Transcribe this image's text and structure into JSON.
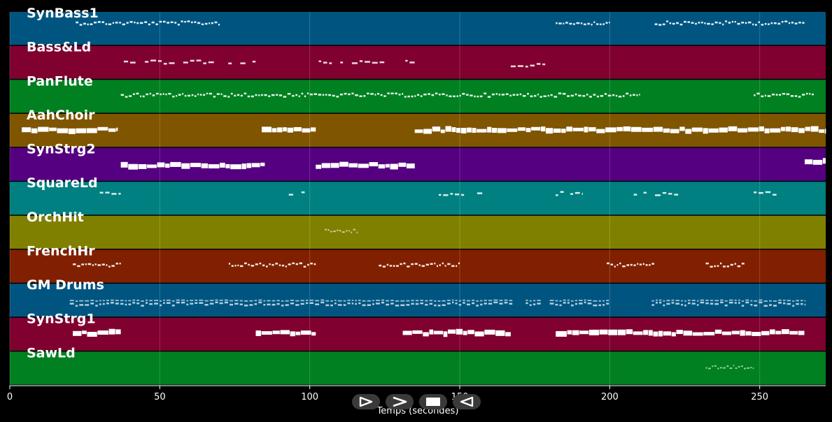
{
  "chart_data": {
    "type": "piano-roll",
    "title": "",
    "xlabel": "Temps (secondes)",
    "ylabel": "",
    "xlim": [
      0,
      272
    ],
    "xticks": [
      0,
      50,
      100,
      150,
      200,
      250
    ],
    "grid": true,
    "tracks": [
      {
        "name": "SynBass1",
        "color": "#005580",
        "segments": [
          [
            22,
            70,
            0.33,
            "dense"
          ],
          [
            182,
            200,
            0.33,
            "dense"
          ],
          [
            215,
            265,
            0.33,
            "dense"
          ]
        ]
      },
      {
        "name": "Bass&Ld",
        "color": "#800030",
        "segments": [
          [
            38,
            85,
            0.48,
            "sparse"
          ],
          [
            103,
            135,
            0.48,
            "sparse"
          ],
          [
            167,
            180,
            0.58,
            "sparse"
          ]
        ]
      },
      {
        "name": "PanFlute",
        "color": "#008020",
        "segments": [
          [
            37,
            210,
            0.45,
            "dense"
          ],
          [
            248,
            268,
            0.45,
            "dense"
          ]
        ]
      },
      {
        "name": "AahChoir",
        "color": "#805500",
        "segments": [
          [
            4,
            36,
            0.48,
            "thick"
          ],
          [
            84,
            102,
            0.48,
            "thick"
          ],
          [
            135,
            272,
            0.48,
            "thick"
          ]
        ]
      },
      {
        "name": "SynStrg2",
        "color": "#550080",
        "segments": [
          [
            37,
            85,
            0.52,
            "thick"
          ],
          [
            102,
            135,
            0.52,
            "thick"
          ],
          [
            265,
            272,
            0.42,
            "thick"
          ]
        ]
      },
      {
        "name": "SquareLd",
        "color": "#008080",
        "segments": [
          [
            30,
            37,
            0.35,
            "sparse"
          ],
          [
            93,
            102,
            0.35,
            "sparse"
          ],
          [
            143,
            158,
            0.35,
            "sparse"
          ],
          [
            182,
            191,
            0.35,
            "sparse"
          ],
          [
            208,
            223,
            0.35,
            "sparse"
          ],
          [
            248,
            256,
            0.35,
            "sparse"
          ]
        ]
      },
      {
        "name": "OrchHit",
        "color": "#808000",
        "segments": [
          [
            105,
            116,
            0.45,
            "faint"
          ]
        ]
      },
      {
        "name": "FrenchHr",
        "color": "#802000",
        "segments": [
          [
            21,
            37,
            0.45,
            "dense"
          ],
          [
            73,
            102,
            0.45,
            "dense"
          ],
          [
            123,
            150,
            0.45,
            "dense"
          ],
          [
            199,
            215,
            0.45,
            "dense"
          ],
          [
            232,
            245,
            0.45,
            "dense"
          ]
        ]
      },
      {
        "name": "GM Drums",
        "color": "#005580",
        "segments": [
          [
            20,
            168,
            0.6,
            "drums"
          ],
          [
            172,
            177,
            0.6,
            "drums"
          ],
          [
            180,
            200,
            0.6,
            "drums"
          ],
          [
            214,
            265,
            0.6,
            "drums"
          ]
        ]
      },
      {
        "name": "SynStrg1",
        "color": "#800030",
        "segments": [
          [
            21,
            37,
            0.45,
            "thick"
          ],
          [
            82,
            102,
            0.45,
            "thick"
          ],
          [
            131,
            167,
            0.45,
            "thick"
          ],
          [
            182,
            265,
            0.45,
            "thick"
          ]
        ]
      },
      {
        "name": "SawLd",
        "color": "#008020",
        "segments": [
          [
            232,
            248,
            0.45,
            "faint"
          ]
        ]
      }
    ]
  },
  "controls": [
    {
      "name": "play-outline-icon",
      "label": "play"
    },
    {
      "name": "chevron-right-icon",
      "label": "next"
    },
    {
      "name": "stop-icon",
      "label": "stop"
    },
    {
      "name": "play-reverse-icon",
      "label": "reverse"
    }
  ]
}
